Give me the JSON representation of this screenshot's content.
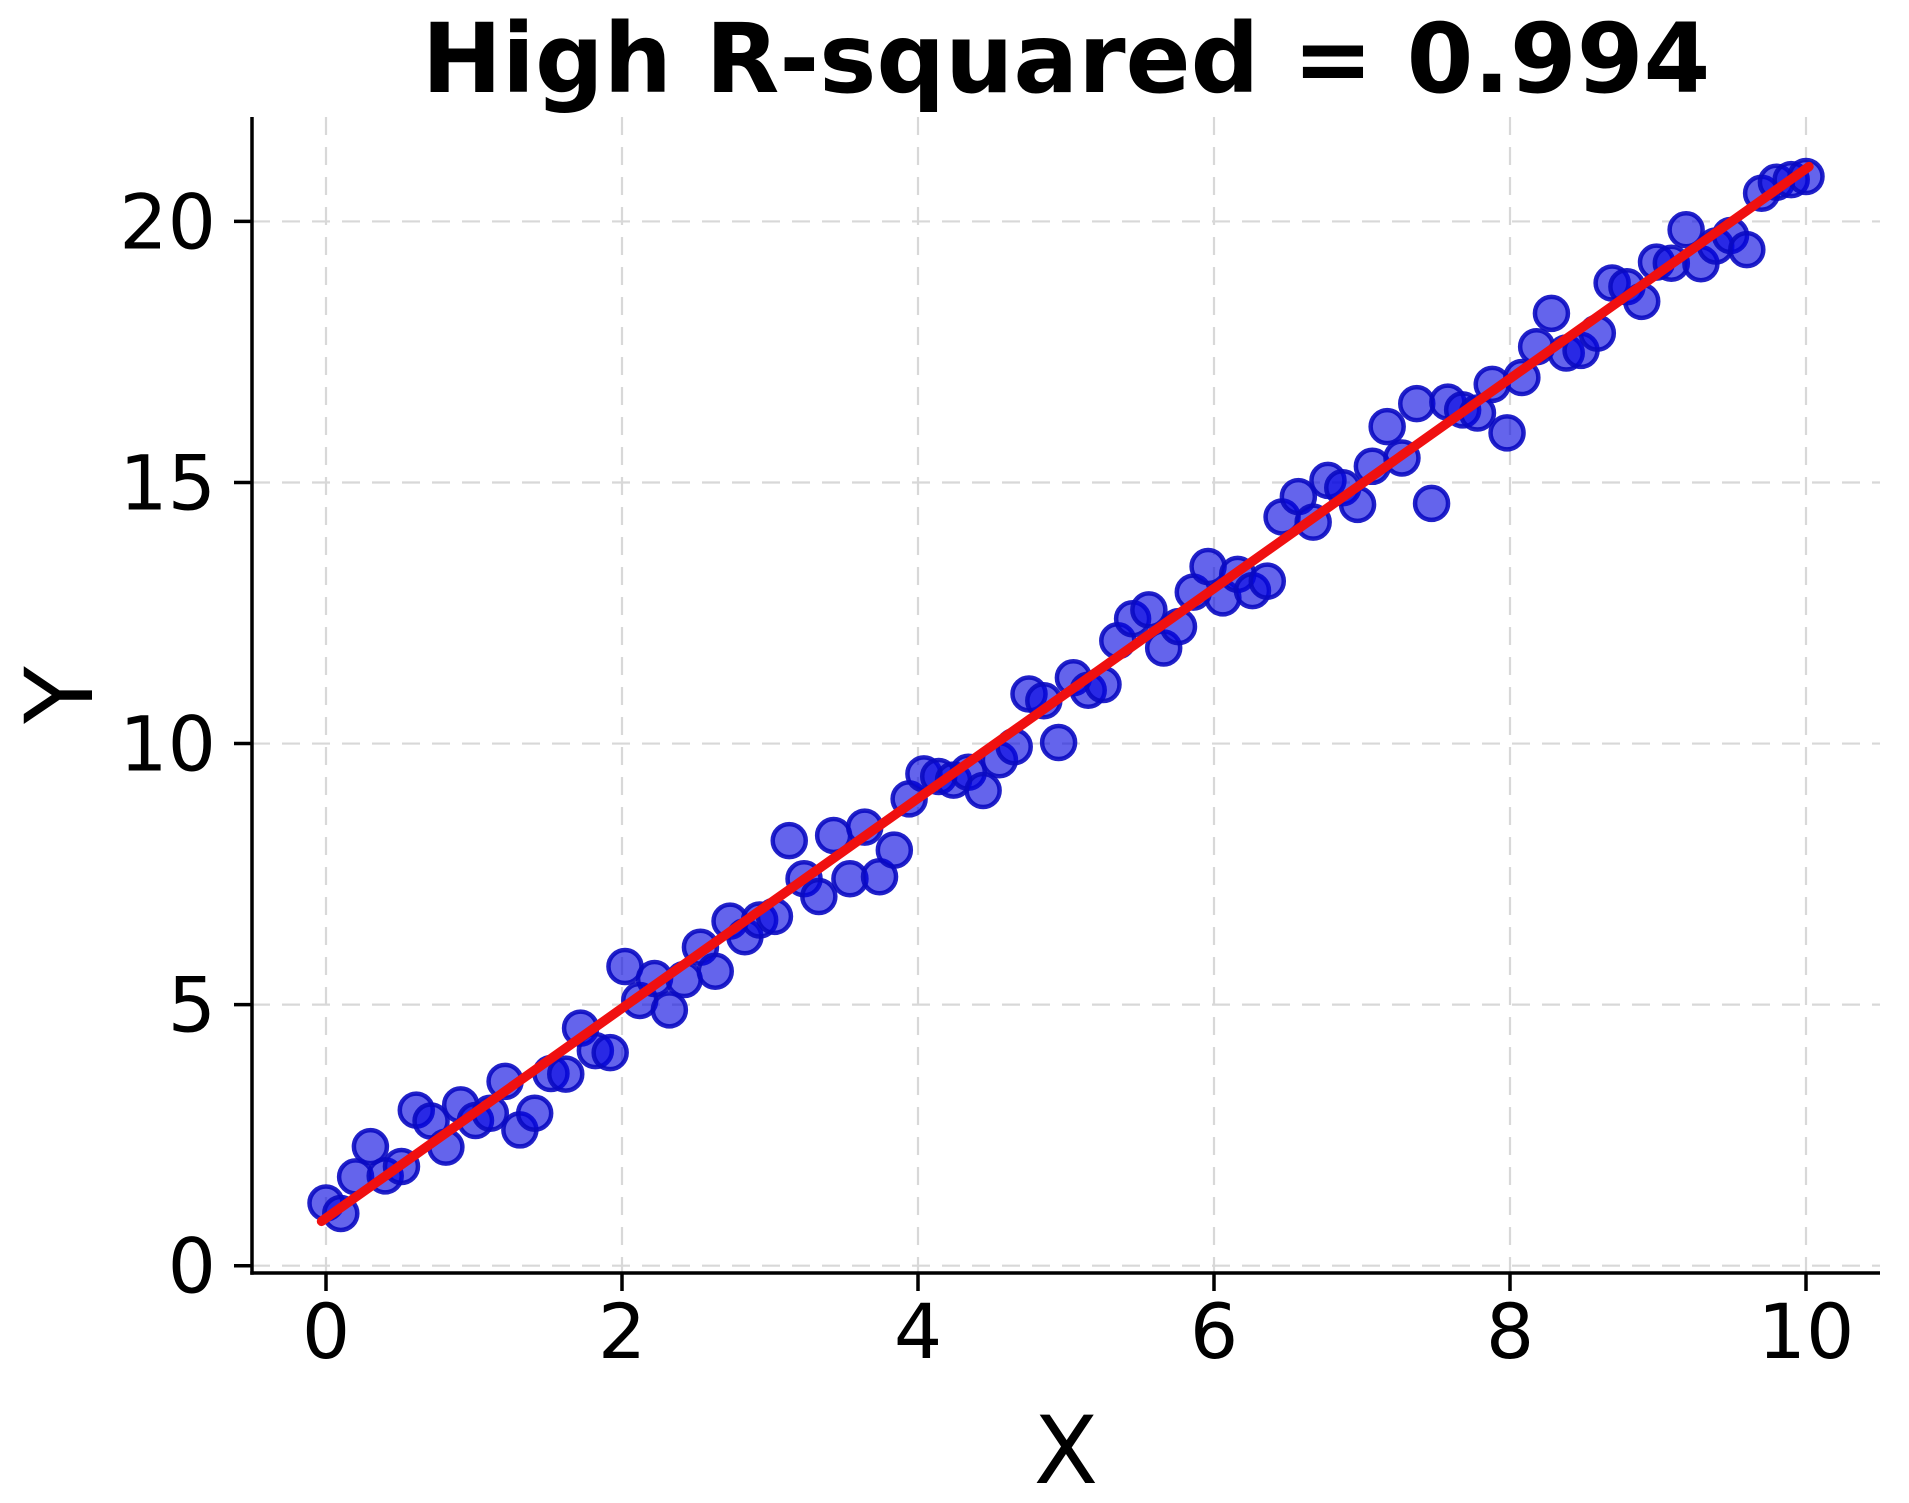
{
  "chart_data": {
    "type": "scatter",
    "title": "High R-squared = 0.994",
    "xlabel": "X",
    "ylabel": "Y",
    "x_ticks": [
      0,
      2,
      4,
      6,
      8,
      10
    ],
    "y_ticks": [
      0,
      5,
      10,
      15,
      20
    ],
    "xlim": [
      -0.5,
      10.5
    ],
    "ylim": [
      -0.14,
      22.0
    ],
    "grid": true,
    "grid_style": "dashed",
    "legend": false,
    "colors": {
      "point_fill": "#0505e0",
      "point_fill_opacity": 0.62,
      "point_edge": "#0a0ac2",
      "point_edge_opacity": 0.9,
      "line": "#f01010",
      "grid": "#d8d8d8",
      "axis": "#000000"
    },
    "series": [
      {
        "name": "data points",
        "type": "scatter",
        "points": [
          [
            0.0,
            1.2
          ],
          [
            0.1,
            1.0
          ],
          [
            0.2,
            1.7
          ],
          [
            0.3,
            2.28
          ],
          [
            0.4,
            1.72
          ],
          [
            0.51,
            1.9
          ],
          [
            0.61,
            2.98
          ],
          [
            0.71,
            2.77
          ],
          [
            0.81,
            2.27
          ],
          [
            0.91,
            3.08
          ],
          [
            1.01,
            2.78
          ],
          [
            1.11,
            2.92
          ],
          [
            1.21,
            3.53
          ],
          [
            1.31,
            2.6
          ],
          [
            1.41,
            2.92
          ],
          [
            1.52,
            3.68
          ],
          [
            1.62,
            3.67
          ],
          [
            1.72,
            4.55
          ],
          [
            1.82,
            4.12
          ],
          [
            1.92,
            4.08
          ],
          [
            2.02,
            5.73
          ],
          [
            2.12,
            5.08
          ],
          [
            2.22,
            5.5
          ],
          [
            2.32,
            4.9
          ],
          [
            2.42,
            5.48
          ],
          [
            2.53,
            6.1
          ],
          [
            2.63,
            5.64
          ],
          [
            2.73,
            6.6
          ],
          [
            2.83,
            6.3
          ],
          [
            2.93,
            6.62
          ],
          [
            3.03,
            6.69
          ],
          [
            3.13,
            8.14
          ],
          [
            3.23,
            7.41
          ],
          [
            3.33,
            7.07
          ],
          [
            3.43,
            8.24
          ],
          [
            3.54,
            7.41
          ],
          [
            3.64,
            8.4
          ],
          [
            3.74,
            7.45
          ],
          [
            3.84,
            7.96
          ],
          [
            3.94,
            8.94
          ],
          [
            4.04,
            9.42
          ],
          [
            4.14,
            9.37
          ],
          [
            4.24,
            9.3
          ],
          [
            4.34,
            9.45
          ],
          [
            4.44,
            9.1
          ],
          [
            4.55,
            9.69
          ],
          [
            4.65,
            9.94
          ],
          [
            4.75,
            10.95
          ],
          [
            4.85,
            10.82
          ],
          [
            4.95,
            10.02
          ],
          [
            5.05,
            11.26
          ],
          [
            5.15,
            11.02
          ],
          [
            5.25,
            11.13
          ],
          [
            5.35,
            11.97
          ],
          [
            5.45,
            12.39
          ],
          [
            5.56,
            12.56
          ],
          [
            5.66,
            11.83
          ],
          [
            5.76,
            12.24
          ],
          [
            5.86,
            12.9
          ],
          [
            5.96,
            13.39
          ],
          [
            6.06,
            12.79
          ],
          [
            6.16,
            13.24
          ],
          [
            6.26,
            12.93
          ],
          [
            6.36,
            13.11
          ],
          [
            6.46,
            14.34
          ],
          [
            6.57,
            14.73
          ],
          [
            6.67,
            14.24
          ],
          [
            6.77,
            15.04
          ],
          [
            6.87,
            14.9
          ],
          [
            6.97,
            14.58
          ],
          [
            7.07,
            15.31
          ],
          [
            7.17,
            16.07
          ],
          [
            7.27,
            15.47
          ],
          [
            7.37,
            16.51
          ],
          [
            7.47,
            14.6
          ],
          [
            7.58,
            16.54
          ],
          [
            7.68,
            16.39
          ],
          [
            7.78,
            16.33
          ],
          [
            7.88,
            16.88
          ],
          [
            7.98,
            15.95
          ],
          [
            8.08,
            17.01
          ],
          [
            8.18,
            17.6
          ],
          [
            8.28,
            18.24
          ],
          [
            8.38,
            17.48
          ],
          [
            8.48,
            17.53
          ],
          [
            8.59,
            17.86
          ],
          [
            8.69,
            18.82
          ],
          [
            8.79,
            18.75
          ],
          [
            8.89,
            18.47
          ],
          [
            8.99,
            19.22
          ],
          [
            9.09,
            19.2
          ],
          [
            9.19,
            19.84
          ],
          [
            9.29,
            19.19
          ],
          [
            9.39,
            19.53
          ],
          [
            9.49,
            19.73
          ],
          [
            9.6,
            19.46
          ],
          [
            9.7,
            20.54
          ],
          [
            9.8,
            20.75
          ],
          [
            9.9,
            20.8
          ],
          [
            10.0,
            20.86
          ]
        ]
      },
      {
        "name": "regression line",
        "type": "line",
        "points": [
          [
            -0.03,
            0.85
          ],
          [
            10.02,
            21.05
          ]
        ]
      }
    ]
  }
}
